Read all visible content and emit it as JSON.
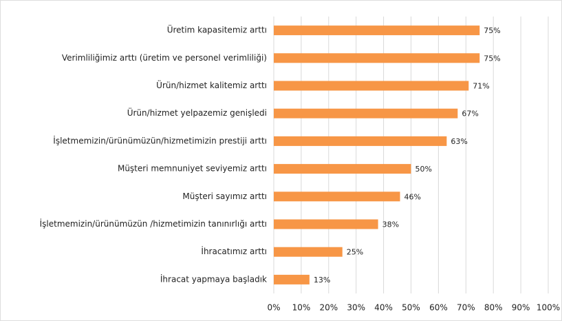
{
  "chart_data": {
    "type": "bar",
    "orientation": "horizontal",
    "categories": [
      "Üretim kapasitemiz arttı",
      "Verimliliğimiz arttı (üretim ve personel verimliliği)",
      "Ürün/hizmet kalitemiz arttı",
      "Ürün/hizmet yelpazemiz genişledi",
      "İşletmemizin/ürünümüzün/hizmetimizin prestiji arttı",
      "Müşteri memnuniyet seviyemiz arttı",
      "Müşteri sayımız arttı",
      "İşletmemizin/ürünümüzün /hizmetimizin tanınırlığı arttı",
      "İhracatımız arttı",
      "İhracat yapmaya başladık"
    ],
    "values": [
      75,
      75,
      71,
      67,
      63,
      50,
      46,
      38,
      25,
      13
    ],
    "value_labels": [
      "75%",
      "75%",
      "71%",
      "67%",
      "63%",
      "50%",
      "46%",
      "38%",
      "25%",
      "13%"
    ],
    "color": "#f79646",
    "xlim": [
      0,
      100
    ],
    "xticks": [
      {
        "value": 0,
        "label": "0%"
      },
      {
        "value": 10,
        "label": "10%"
      },
      {
        "value": 20,
        "label": "20%"
      },
      {
        "value": 30,
        "label": "30%"
      },
      {
        "value": 40,
        "label": "40%"
      },
      {
        "value": 50,
        "label": "50%"
      },
      {
        "value": 60,
        "label": "60%"
      },
      {
        "value": 70,
        "label": "70%"
      },
      {
        "value": 80,
        "label": "80%"
      },
      {
        "value": 90,
        "label": "90%"
      },
      {
        "value": 100,
        "label": "100%"
      }
    ],
    "grid": true
  }
}
